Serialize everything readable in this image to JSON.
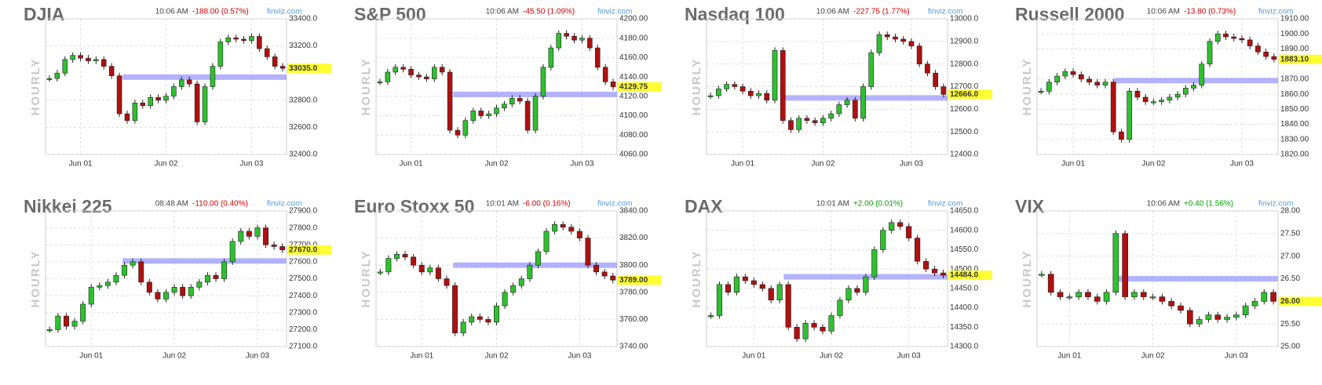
{
  "chart_data": [
    {
      "type": "candlestick",
      "title": "DJIA",
      "time": "10:06 AM",
      "change": "-188.00 (0.57%)",
      "change_color": "#d00000",
      "source": "finviz.com",
      "y_label": "HOURLY",
      "values": [
        32960,
        33000,
        33100,
        33130,
        33110,
        33090,
        33100,
        33050,
        32980,
        32700,
        32650,
        32780,
        32760,
        32820,
        32800,
        32830,
        32900,
        32950,
        32920,
        32640,
        32900,
        33050,
        33230,
        33260,
        33250,
        33240,
        33270,
        33180,
        33120,
        33050,
        33035
      ],
      "xticks": [
        {
          "value": 4,
          "label": "Jun 01"
        },
        {
          "value": 15,
          "label": "Jun 02"
        },
        {
          "value": 26,
          "label": "Jun 03"
        }
      ],
      "ylim": [
        32400,
        33400
      ],
      "yticks": [
        {
          "value": 32400,
          "label": "32400.0"
        },
        {
          "value": 32600,
          "label": "32600.0"
        },
        {
          "value": 32800,
          "label": "32800.0"
        },
        {
          "value": 33200,
          "label": "33200.0"
        },
        {
          "value": 33400,
          "label": "33400.0"
        }
      ],
      "reference_line": 32970,
      "last": {
        "value": 33035,
        "label": "33035.0"
      },
      "grid": true
    },
    {
      "type": "candlestick",
      "title": "S&P 500",
      "time": "10:06 AM",
      "change": "-45.50 (1.09%)",
      "change_color": "#d00000",
      "source": "finviz.com",
      "y_label": "HOURLY",
      "values": [
        4135,
        4145,
        4150,
        4148,
        4142,
        4140,
        4138,
        4150,
        4145,
        4085,
        4080,
        4095,
        4105,
        4100,
        4102,
        4108,
        4112,
        4118,
        4115,
        4085,
        4120,
        4150,
        4170,
        4185,
        4182,
        4178,
        4180,
        4170,
        4150,
        4135,
        4129.75
      ],
      "xticks": [
        {
          "value": 4,
          "label": "Jun 01"
        },
        {
          "value": 15,
          "label": "Jun 02"
        },
        {
          "value": 26,
          "label": "Jun 03"
        }
      ],
      "ylim": [
        4060,
        4200
      ],
      "yticks": [
        {
          "value": 4060,
          "label": "4060.00"
        },
        {
          "value": 4080,
          "label": "4080.00"
        },
        {
          "value": 4100,
          "label": "4100.00"
        },
        {
          "value": 4120,
          "label": "4120.00"
        },
        {
          "value": 4140,
          "label": "4140.00"
        },
        {
          "value": 4160,
          "label": "4160.00"
        },
        {
          "value": 4180,
          "label": "4180.00"
        },
        {
          "value": 4200,
          "label": "4200.00"
        }
      ],
      "reference_line": 4122,
      "last": {
        "value": 4129.75,
        "label": "4129.75"
      },
      "grid": true
    },
    {
      "type": "candlestick",
      "title": "Nasdaq 100",
      "time": "10:06 AM",
      "change": "-227.75 (1.77%)",
      "change_color": "#d00000",
      "source": "finviz.com",
      "y_label": "HOURLY",
      "values": [
        12660,
        12690,
        12710,
        12700,
        12680,
        12660,
        12670,
        12640,
        12860,
        12550,
        12510,
        12560,
        12550,
        12540,
        12560,
        12580,
        12620,
        12640,
        12560,
        12700,
        12850,
        12930,
        12920,
        12910,
        12900,
        12880,
        12800,
        12760,
        12700,
        12666
      ],
      "xticks": [
        {
          "value": 4,
          "label": "Jun 01"
        },
        {
          "value": 14,
          "label": "Jun 02"
        },
        {
          "value": 25,
          "label": "Jun 03"
        }
      ],
      "ylim": [
        12400,
        13000
      ],
      "yticks": [
        {
          "value": 12400,
          "label": "12400.0"
        },
        {
          "value": 12500,
          "label": "12500.0"
        },
        {
          "value": 12600,
          "label": "12600.0"
        },
        {
          "value": 12700,
          "label": "12700.0"
        },
        {
          "value": 12800,
          "label": "12800.0"
        },
        {
          "value": 12900,
          "label": "12900.0"
        },
        {
          "value": 13000,
          "label": "13000.0"
        }
      ],
      "reference_line": 12650,
      "last": {
        "value": 12666,
        "label": "12666.0"
      },
      "grid": true
    },
    {
      "type": "candlestick",
      "title": "Russell 2000",
      "time": "10:06 AM",
      "change": "-13.80 (0.73%)",
      "change_color": "#d00000",
      "source": "finviz.com",
      "y_label": "HOURLY",
      "values": [
        1862,
        1868,
        1872,
        1875,
        1873,
        1870,
        1868,
        1866,
        1868,
        1835,
        1830,
        1862,
        1858,
        1855,
        1855,
        1856,
        1858,
        1860,
        1864,
        1866,
        1880,
        1895,
        1900,
        1898,
        1897,
        1896,
        1892,
        1888,
        1885,
        1883.1
      ],
      "xticks": [
        {
          "value": 4,
          "label": "Jun 01"
        },
        {
          "value": 14,
          "label": "Jun 02"
        },
        {
          "value": 25,
          "label": "Jun 03"
        }
      ],
      "ylim": [
        1820,
        1910
      ],
      "yticks": [
        {
          "value": 1820,
          "label": "1820.00"
        },
        {
          "value": 1830,
          "label": "1830.00"
        },
        {
          "value": 1840,
          "label": "1840.00"
        },
        {
          "value": 1850,
          "label": "1850.00"
        },
        {
          "value": 1860,
          "label": "1860.00"
        },
        {
          "value": 1870,
          "label": "1870.00"
        },
        {
          "value": 1890,
          "label": "1890.00"
        },
        {
          "value": 1900,
          "label": "1900.00"
        },
        {
          "value": 1910,
          "label": "1910.00"
        }
      ],
      "reference_line": 1869,
      "last": {
        "value": 1883.1,
        "label": "1883.10"
      },
      "grid": true
    },
    {
      "type": "candlestick",
      "title": "Nikkei 225",
      "time": "08:48 AM",
      "change": "-110.00 (0.40%)",
      "change_color": "#d00000",
      "source": "finviz.com",
      "y_label": "HOURLY",
      "values": [
        27200,
        27280,
        27220,
        27250,
        27350,
        27450,
        27460,
        27480,
        27520,
        27580,
        27600,
        27480,
        27420,
        27380,
        27420,
        27450,
        27400,
        27450,
        27480,
        27520,
        27500,
        27600,
        27720,
        27780,
        27750,
        27800,
        27700,
        27690,
        27670
      ],
      "xticks": [
        {
          "value": 5,
          "label": "Jun 01"
        },
        {
          "value": 15,
          "label": "Jun 02"
        },
        {
          "value": 25,
          "label": "Jun 03"
        }
      ],
      "ylim": [
        27100,
        27900
      ],
      "yticks": [
        {
          "value": 27100,
          "label": "27100.0"
        },
        {
          "value": 27200,
          "label": "27200.0"
        },
        {
          "value": 27300,
          "label": "27300.0"
        },
        {
          "value": 27400,
          "label": "27400.0"
        },
        {
          "value": 27500,
          "label": "27500.0"
        },
        {
          "value": 27600,
          "label": "27600.0"
        },
        {
          "value": 27700,
          "label": "27700.0"
        },
        {
          "value": 27800,
          "label": "27800.0"
        },
        {
          "value": 27900,
          "label": "27900.0"
        }
      ],
      "reference_line": 27605,
      "last": {
        "value": 27670,
        "label": "27670.0"
      },
      "grid": true
    },
    {
      "type": "candlestick",
      "title": "Euro Stoxx 50",
      "time": "10:01 AM",
      "change": "-6.00 (0.16%)",
      "change_color": "#d00000",
      "source": "finviz.com",
      "y_label": "HOURLY",
      "values": [
        3795,
        3805,
        3808,
        3806,
        3800,
        3795,
        3798,
        3790,
        3785,
        3750,
        3758,
        3762,
        3760,
        3758,
        3770,
        3780,
        3785,
        3790,
        3800,
        3810,
        3825,
        3830,
        3828,
        3825,
        3820,
        3800,
        3795,
        3792,
        3789
      ],
      "xticks": [
        {
          "value": 5,
          "label": "Jun 01"
        },
        {
          "value": 14,
          "label": "Jun 02"
        },
        {
          "value": 24,
          "label": "Jun 03"
        }
      ],
      "ylim": [
        3740,
        3840
      ],
      "yticks": [
        {
          "value": 3740,
          "label": "3740.00"
        },
        {
          "value": 3760,
          "label": "3760.00"
        },
        {
          "value": 3780,
          "label": "3780.00"
        },
        {
          "value": 3800,
          "label": "3800.00"
        },
        {
          "value": 3820,
          "label": "3820.00"
        },
        {
          "value": 3840,
          "label": "3840.00"
        }
      ],
      "reference_line": 3800,
      "last": {
        "value": 3789,
        "label": "3789.00"
      },
      "grid": true
    },
    {
      "type": "candlestick",
      "title": "DAX",
      "time": "10:01 AM",
      "change": "+2.00 (0.01%)",
      "change_color": "#00a000",
      "source": "finviz.com",
      "y_label": "HOURLY",
      "values": [
        14380,
        14460,
        14440,
        14480,
        14470,
        14460,
        14450,
        14420,
        14460,
        14350,
        14320,
        14360,
        14350,
        14340,
        14380,
        14420,
        14450,
        14440,
        14480,
        14550,
        14600,
        14620,
        14610,
        14580,
        14520,
        14500,
        14490,
        14484
      ],
      "xticks": [
        {
          "value": 5,
          "label": "Jun 01"
        },
        {
          "value": 14,
          "label": "Jun 02"
        },
        {
          "value": 23,
          "label": "Jun 03"
        }
      ],
      "ylim": [
        14300,
        14650
      ],
      "yticks": [
        {
          "value": 14300,
          "label": "14300.0"
        },
        {
          "value": 14350,
          "label": "14350.0"
        },
        {
          "value": 14400,
          "label": "14400.0"
        },
        {
          "value": 14450,
          "label": "14450.0"
        },
        {
          "value": 14500,
          "label": "14500.0"
        },
        {
          "value": 14550,
          "label": "14550.0"
        },
        {
          "value": 14600,
          "label": "14600.0"
        },
        {
          "value": 14650,
          "label": "14650.0"
        }
      ],
      "reference_line": 14480,
      "last": {
        "value": 14484,
        "label": "14484.0"
      },
      "grid": true
    },
    {
      "type": "candlestick",
      "title": "VIX",
      "time": "10:06 AM",
      "change": "+0.40 (1.56%)",
      "change_color": "#00a000",
      "source": "finviz.com",
      "y_label": "HOURLY",
      "values": [
        26.6,
        26.2,
        26.1,
        26.1,
        26.2,
        26.1,
        26.0,
        26.2,
        27.5,
        26.1,
        26.2,
        26.1,
        26.1,
        26.0,
        25.9,
        25.8,
        25.5,
        25.6,
        25.7,
        25.6,
        25.65,
        25.7,
        25.9,
        26.0,
        26.2,
        26
      ],
      "xticks": [
        {
          "value": 3,
          "label": "Jun 01"
        },
        {
          "value": 12,
          "label": "Jun 02"
        },
        {
          "value": 21,
          "label": "Jun 03"
        }
      ],
      "ylim": [
        25,
        28
      ],
      "yticks": [
        {
          "value": 25,
          "label": "25.00"
        },
        {
          "value": 25.5,
          "label": "25.50"
        },
        {
          "value": 26.5,
          "label": "26.50"
        },
        {
          "value": 27,
          "label": "27.00"
        },
        {
          "value": 27.5,
          "label": "27.50"
        },
        {
          "value": 28,
          "label": "28.00"
        }
      ],
      "reference_line": 26.5,
      "last": {
        "value": 26,
        "label": "26.00"
      },
      "grid": true
    }
  ]
}
